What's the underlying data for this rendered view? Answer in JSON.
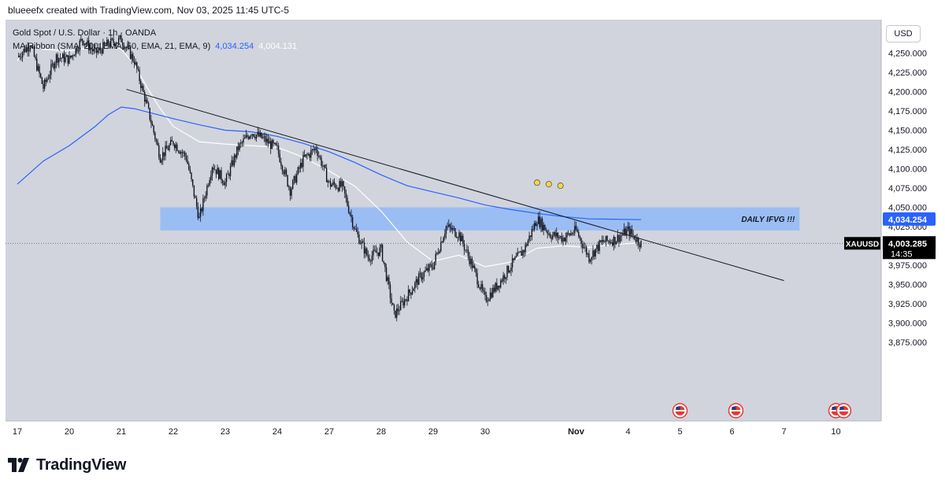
{
  "header": {
    "attribution": "blueeefx created with TradingView.com, Nov 03, 2025 11:45 UTC-5"
  },
  "legend": {
    "symbol_line": "Gold Spot / U.S. Dollar · 1h · OANDA",
    "ma_label": "MA Ribbon (SMA, 200, EMA, 50, EMA, 21, EMA, 9)",
    "ma_value_1": "4,034.254",
    "ma_value_2": "4,004.131"
  },
  "currency_button": "USD",
  "brand": {
    "name": "TradingView"
  },
  "colors": {
    "background": "#d1d4dc",
    "candle": "#131722",
    "ma_long": "#2962ff",
    "ma_short": "#ffffff",
    "zone": "#90b8f8",
    "trendline": "#131722",
    "price_tag": "#000000"
  },
  "chart_data": {
    "type": "candlestick",
    "title": "Gold Spot / U.S. Dollar · 1h · OANDA",
    "symbol": "XAUUSD",
    "ylim": [
      3855,
      4275
    ],
    "y_ticks": [
      3875,
      3900,
      3925,
      3950,
      3975,
      4000,
      4025,
      4050,
      4075,
      4100,
      4125,
      4150,
      4175,
      4200,
      4225,
      4250
    ],
    "y_tick_labels": [
      "3,875.000",
      "3,900.000",
      "3,925.000",
      "3,950.000",
      "3,975.000",
      "4,000.000",
      "4,025.000",
      "4,050.000",
      "4,075.000",
      "4,100.000",
      "4,125.000",
      "4,150.000",
      "4,175.000",
      "4,200.000",
      "4,225.000",
      "4,250.000"
    ],
    "x_ticks": [
      {
        "label": "17",
        "i": 0,
        "bold": false
      },
      {
        "label": "20",
        "i": 4,
        "bold": false
      },
      {
        "label": "21",
        "i": 8,
        "bold": false
      },
      {
        "label": "22",
        "i": 12,
        "bold": false
      },
      {
        "label": "23",
        "i": 16,
        "bold": false
      },
      {
        "label": "24",
        "i": 20,
        "bold": false
      },
      {
        "label": "27",
        "i": 24,
        "bold": false
      },
      {
        "label": "28",
        "i": 28,
        "bold": false
      },
      {
        "label": "29",
        "i": 32,
        "bold": false
      },
      {
        "label": "30",
        "i": 36,
        "bold": false
      },
      {
        "label": "Nov",
        "i": 43,
        "bold": true
      },
      {
        "label": "4",
        "i": 47,
        "bold": false
      },
      {
        "label": "5",
        "i": 51,
        "bold": false
      },
      {
        "label": "6",
        "i": 55,
        "bold": false
      },
      {
        "label": "7",
        "i": 59,
        "bold": false
      },
      {
        "label": "10",
        "i": 63,
        "bold": false
      }
    ],
    "price_path": [
      {
        "i": 0,
        "p": 4245
      },
      {
        "i": 1,
        "p": 4262
      },
      {
        "i": 2,
        "p": 4205
      },
      {
        "i": 3,
        "p": 4245
      },
      {
        "i": 4,
        "p": 4242
      },
      {
        "i": 5,
        "p": 4268
      },
      {
        "i": 6,
        "p": 4250
      },
      {
        "i": 7,
        "p": 4262
      },
      {
        "i": 8,
        "p": 4268
      },
      {
        "i": 9,
        "p": 4240
      },
      {
        "i": 10,
        "p": 4180
      },
      {
        "i": 11,
        "p": 4115
      },
      {
        "i": 12,
        "p": 4135
      },
      {
        "i": 13,
        "p": 4115
      },
      {
        "i": 14,
        "p": 4035
      },
      {
        "i": 15,
        "p": 4105
      },
      {
        "i": 16,
        "p": 4082
      },
      {
        "i": 17,
        "p": 4127
      },
      {
        "i": 18,
        "p": 4148
      },
      {
        "i": 19,
        "p": 4138
      },
      {
        "i": 20,
        "p": 4125
      },
      {
        "i": 21,
        "p": 4072
      },
      {
        "i": 22,
        "p": 4112
      },
      {
        "i": 23,
        "p": 4127
      },
      {
        "i": 24,
        "p": 4080
      },
      {
        "i": 25,
        "p": 4077
      },
      {
        "i": 26,
        "p": 4020
      },
      {
        "i": 27,
        "p": 3985
      },
      {
        "i": 28,
        "p": 3995
      },
      {
        "i": 29,
        "p": 3910
      },
      {
        "i": 30,
        "p": 3935
      },
      {
        "i": 31,
        "p": 3960
      },
      {
        "i": 32,
        "p": 3975
      },
      {
        "i": 33,
        "p": 4025
      },
      {
        "i": 34,
        "p": 4015
      },
      {
        "i": 35,
        "p": 3975
      },
      {
        "i": 36,
        "p": 3930
      },
      {
        "i": 37,
        "p": 3950
      },
      {
        "i": 38,
        "p": 3975
      },
      {
        "i": 39,
        "p": 3995
      },
      {
        "i": 40,
        "p": 4035
      },
      {
        "i": 41,
        "p": 4015
      },
      {
        "i": 42,
        "p": 4010
      },
      {
        "i": 43,
        "p": 4020
      },
      {
        "i": 44,
        "p": 3985
      },
      {
        "i": 45,
        "p": 4005
      },
      {
        "i": 46,
        "p": 4008
      },
      {
        "i": 47,
        "p": 4020
      },
      {
        "i": 48,
        "p": 4003
      }
    ],
    "ma_long_path": [
      {
        "i": 0,
        "p": 4080
      },
      {
        "i": 2,
        "p": 4110
      },
      {
        "i": 4,
        "p": 4130
      },
      {
        "i": 6,
        "p": 4155
      },
      {
        "i": 7,
        "p": 4170
      },
      {
        "i": 8,
        "p": 4180
      },
      {
        "i": 9,
        "p": 4178
      },
      {
        "i": 12,
        "p": 4165
      },
      {
        "i": 14,
        "p": 4157
      },
      {
        "i": 16,
        "p": 4150
      },
      {
        "i": 18,
        "p": 4148
      },
      {
        "i": 20,
        "p": 4142
      },
      {
        "i": 22,
        "p": 4133
      },
      {
        "i": 24,
        "p": 4122
      },
      {
        "i": 26,
        "p": 4108
      },
      {
        "i": 28,
        "p": 4092
      },
      {
        "i": 30,
        "p": 4078
      },
      {
        "i": 32,
        "p": 4070
      },
      {
        "i": 34,
        "p": 4062
      },
      {
        "i": 36,
        "p": 4053
      },
      {
        "i": 38,
        "p": 4047
      },
      {
        "i": 40,
        "p": 4042
      },
      {
        "i": 42,
        "p": 4038
      },
      {
        "i": 44,
        "p": 4035
      },
      {
        "i": 48,
        "p": 4034
      }
    ],
    "ma_short_path": [
      {
        "i": 0,
        "p": 4240
      },
      {
        "i": 1,
        "p": 4262
      },
      {
        "i": 2,
        "p": 4255
      },
      {
        "i": 4,
        "p": 4253
      },
      {
        "i": 6,
        "p": 4258
      },
      {
        "i": 7,
        "p": 4262
      },
      {
        "i": 8,
        "p": 4255
      },
      {
        "i": 9,
        "p": 4235
      },
      {
        "i": 10,
        "p": 4205
      },
      {
        "i": 11,
        "p": 4178
      },
      {
        "i": 12,
        "p": 4155
      },
      {
        "i": 14,
        "p": 4135
      },
      {
        "i": 16,
        "p": 4132
      },
      {
        "i": 18,
        "p": 4130
      },
      {
        "i": 20,
        "p": 4128
      },
      {
        "i": 22,
        "p": 4115
      },
      {
        "i": 24,
        "p": 4097
      },
      {
        "i": 26,
        "p": 4077
      },
      {
        "i": 28,
        "p": 4045
      },
      {
        "i": 30,
        "p": 4005
      },
      {
        "i": 32,
        "p": 3980
      },
      {
        "i": 34,
        "p": 3988
      },
      {
        "i": 36,
        "p": 3973
      },
      {
        "i": 38,
        "p": 3979
      },
      {
        "i": 40,
        "p": 3997
      },
      {
        "i": 42,
        "p": 4000
      },
      {
        "i": 44,
        "p": 3998
      },
      {
        "i": 46,
        "p": 4002
      },
      {
        "i": 48,
        "p": 4004
      }
    ],
    "trendline": {
      "start": {
        "i": 8.4,
        "p": 4203
      },
      "end": {
        "i": 59,
        "p": 3955
      }
    },
    "zone": {
      "label": "DAILY IFVG !!!",
      "start_i": 11,
      "end_i": 60.2,
      "top": 4050,
      "bottom": 4020
    },
    "current_price_line": 4003.285,
    "price_labels": [
      {
        "text": "4,034.254",
        "price": 4034.254,
        "style": "blue"
      },
      {
        "text": "4,004.131",
        "price": 4004.131,
        "style": "white"
      },
      {
        "text": "4,003.285",
        "price": 4003.285,
        "style": "black",
        "symbol": "XAUUSD",
        "countdown": "14:35"
      }
    ],
    "event_markers": [
      {
        "i": 51.0
      },
      {
        "i": 55.3
      },
      {
        "i": 63.0
      },
      {
        "i": 63.6
      }
    ],
    "annotation_markers": [
      {
        "i": 40.0,
        "p": 4082
      },
      {
        "i": 40.9,
        "p": 4080
      },
      {
        "i": 41.8,
        "p": 4078
      }
    ]
  }
}
